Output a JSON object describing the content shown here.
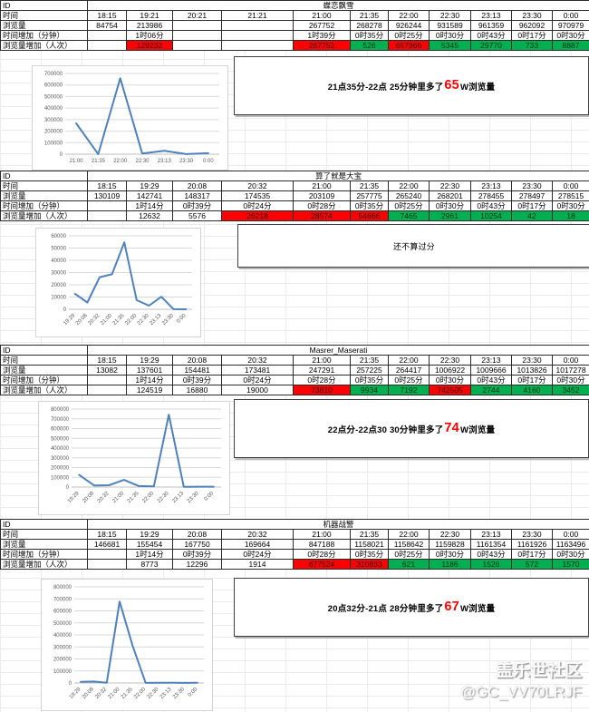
{
  "row_labels": {
    "id": "ID",
    "time": "时间",
    "views": "浏览量",
    "time_added": "时间增加（分钟）",
    "views_added": "浏览量增加（人次）"
  },
  "colors": {
    "red_fill": "#ff0000",
    "green_fill": "#00b050",
    "line": "#4f81bd",
    "grid": "#d9d9d9",
    "axis_text": "#595959"
  },
  "watermark": {
    "line1": "盖乐世社区",
    "line2": "@GC_VV70LRJF"
  },
  "sections": [
    {
      "id": "蝶恋飘雪",
      "times": [
        "18:15",
        "19:21",
        "20:21",
        "21:21",
        "21:00",
        "21:35",
        "22:00",
        "22:30",
        "23:13",
        "23:30",
        "0:00"
      ],
      "views": [
        "84754",
        "213986",
        "",
        "",
        "267752",
        "268278",
        "926244",
        "931589",
        "961359",
        "962092",
        "970979"
      ],
      "time_added": [
        "",
        "1时06分",
        "",
        "",
        "1时39分",
        "0时35分",
        "0时25分",
        "0时30分",
        "0时43分",
        "0时17分",
        "0时30分"
      ],
      "views_added": [
        {
          "v": "",
          "fill": "none"
        },
        {
          "v": "129232",
          "fill": "red"
        },
        {
          "v": "",
          "fill": "none"
        },
        {
          "v": "",
          "fill": "none"
        },
        {
          "v": "267752",
          "fill": "red"
        },
        {
          "v": "526",
          "fill": "green"
        },
        {
          "v": "657966",
          "fill": "red"
        },
        {
          "v": "5345",
          "fill": "green"
        },
        {
          "v": "29770",
          "fill": "green"
        },
        {
          "v": "733",
          "fill": "green"
        },
        {
          "v": "8887",
          "fill": "green"
        }
      ],
      "note": {
        "pre": "21点35分-22点 25分钟里多了",
        "big": "65",
        "post": "W浏览量"
      }
    },
    {
      "id": "算了就是大宝",
      "times": [
        "18:15",
        "19:29",
        "20:08",
        "20:32",
        "21:00",
        "21:35",
        "22:00",
        "22:30",
        "23:13",
        "23:30",
        "0:00"
      ],
      "views": [
        "130109",
        "142741",
        "148317",
        "174535",
        "203109",
        "257775",
        "265240",
        "268201",
        "278455",
        "278497",
        "278515"
      ],
      "time_added": [
        "",
        "1时14分",
        "0时39分",
        "0时24分",
        "0时28分",
        "0时35分",
        "0时25分",
        "0时30分",
        "0时43分",
        "0时17分",
        "0时30分"
      ],
      "views_added": [
        {
          "v": "",
          "fill": "none"
        },
        {
          "v": "12632",
          "fill": "none"
        },
        {
          "v": "5576",
          "fill": "none"
        },
        {
          "v": "26218",
          "fill": "red"
        },
        {
          "v": "28574",
          "fill": "red"
        },
        {
          "v": "54666",
          "fill": "red"
        },
        {
          "v": "7465",
          "fill": "green"
        },
        {
          "v": "2961",
          "fill": "green"
        },
        {
          "v": "10254",
          "fill": "green"
        },
        {
          "v": "42",
          "fill": "green"
        },
        {
          "v": "18",
          "fill": "green"
        }
      ],
      "note": {
        "pre": "还不算过分",
        "big": "",
        "post": ""
      }
    },
    {
      "id": "Masrer_Maserati",
      "times": [
        "18:15",
        "19:29",
        "20:08",
        "20:32",
        "21:00",
        "21:35",
        "22:00",
        "22:30",
        "23:13",
        "23:30",
        "0:00"
      ],
      "views": [
        "13082",
        "137601",
        "154481",
        "173481",
        "247291",
        "257225",
        "264417",
        "1006922",
        "1009666",
        "1013826",
        "1017278"
      ],
      "time_added": [
        "",
        "1时14分",
        "0时39分",
        "0时24分",
        "0时28分",
        "0时35分",
        "0时25分",
        "0时30分",
        "0时43分",
        "0时17分",
        "0时30分"
      ],
      "views_added": [
        {
          "v": "",
          "fill": "none"
        },
        {
          "v": "124519",
          "fill": "none"
        },
        {
          "v": "16880",
          "fill": "none"
        },
        {
          "v": "19000",
          "fill": "none"
        },
        {
          "v": "73810",
          "fill": "red"
        },
        {
          "v": "9934",
          "fill": "green"
        },
        {
          "v": "7192",
          "fill": "green"
        },
        {
          "v": "742505",
          "fill": "red"
        },
        {
          "v": "2744",
          "fill": "green"
        },
        {
          "v": "4160",
          "fill": "green"
        },
        {
          "v": "3452",
          "fill": "green"
        }
      ],
      "note": {
        "pre": "22点分-22点30 30分钟里多了",
        "big": "74",
        "post": "W浏览量"
      }
    },
    {
      "id": "机器战警",
      "times": [
        "18:15",
        "19:29",
        "20:08",
        "20:32",
        "21:00",
        "21:35",
        "22:00",
        "22:30",
        "23:13",
        "23:30",
        "0:00"
      ],
      "views": [
        "146681",
        "155454",
        "167750",
        "169664",
        "847188",
        "1158021",
        "1158642",
        "1159828",
        "1161354",
        "1161926",
        "1163496"
      ],
      "time_added": [
        "",
        "1时14分",
        "0时39分",
        "0时24分",
        "0时28分",
        "0时35分",
        "0时25分",
        "0时30分",
        "0时43分",
        "0时17分",
        "0时30分"
      ],
      "views_added": [
        {
          "v": "",
          "fill": "none"
        },
        {
          "v": "8773",
          "fill": "none"
        },
        {
          "v": "12296",
          "fill": "none"
        },
        {
          "v": "1914",
          "fill": "none"
        },
        {
          "v": "677524",
          "fill": "red"
        },
        {
          "v": "310833",
          "fill": "red"
        },
        {
          "v": "621",
          "fill": "green"
        },
        {
          "v": "1186",
          "fill": "green"
        },
        {
          "v": "1526",
          "fill": "green"
        },
        {
          "v": "572",
          "fill": "green"
        },
        {
          "v": "1570",
          "fill": "green"
        }
      ],
      "note": {
        "pre": "20点32分-21点 28分钟里多了",
        "big": "67",
        "post": "W浏览量"
      }
    }
  ],
  "chart_data": [
    {
      "type": "line",
      "title": "",
      "xlabel": "",
      "ylabel": "",
      "categories": [
        "21:00",
        "21:35",
        "22:00",
        "22:30",
        "23:13",
        "23:30",
        "0:00"
      ],
      "values": [
        267752,
        526,
        657966,
        5345,
        29770,
        733,
        8887
      ],
      "ylim": [
        0,
        700000
      ],
      "ystep": 100000,
      "grid": true,
      "legend": "none",
      "x_labels_rotated": false
    },
    {
      "type": "line",
      "title": "",
      "xlabel": "",
      "ylabel": "",
      "categories": [
        "19:29",
        "20:08",
        "20:32",
        "21:00",
        "21:35",
        "22:00",
        "22:30",
        "23:13",
        "23:30",
        "0:00"
      ],
      "values": [
        12632,
        5576,
        26218,
        28574,
        54666,
        7465,
        2961,
        10254,
        42,
        18
      ],
      "ylim": [
        0,
        60000
      ],
      "ystep": 10000,
      "grid": true,
      "legend": "none",
      "x_labels_rotated": true
    },
    {
      "type": "line",
      "title": "",
      "xlabel": "",
      "ylabel": "",
      "categories": [
        "19:29",
        "20:08",
        "20:32",
        "21:00",
        "21:35",
        "22:00",
        "22:30",
        "23:13",
        "23:30",
        "0:00"
      ],
      "values": [
        124519,
        16880,
        19000,
        73810,
        9934,
        7192,
        742505,
        2744,
        4160,
        3452
      ],
      "ylim": [
        0,
        800000
      ],
      "ystep": 100000,
      "grid": true,
      "legend": "none",
      "x_labels_rotated": true
    },
    {
      "type": "line",
      "title": "",
      "xlabel": "",
      "ylabel": "",
      "categories": [
        "19:29",
        "20:08",
        "20:32",
        "21:00",
        "21:35",
        "22:00",
        "22:30",
        "23:13",
        "23:30",
        "0:00"
      ],
      "values": [
        8773,
        12296,
        1914,
        677524,
        310833,
        621,
        1186,
        1526,
        572,
        1570
      ],
      "ylim": [
        0,
        800000
      ],
      "ystep": 100000,
      "grid": true,
      "legend": "none",
      "x_labels_rotated": true
    }
  ]
}
